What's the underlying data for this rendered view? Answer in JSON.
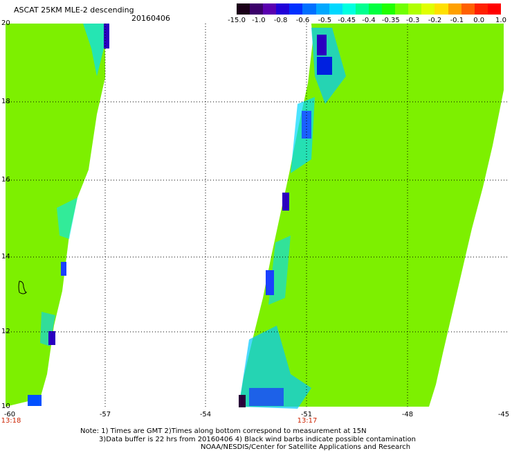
{
  "header": {
    "title": "ASCAT 25KM MLE-2 descending",
    "date": "20160406"
  },
  "colorbar": {
    "labels": [
      "-15.0",
      "-1.0",
      "-0.8",
      "-0.6",
      "-0.5",
      "-0.45",
      "-0.4",
      "-0.35",
      "-0.3",
      "-0.2",
      "-0.1",
      "0.0",
      "1.0"
    ],
    "colors": [
      "#1a0018",
      "#3a006a",
      "#5a00b0",
      "#2000d8",
      "#0030ff",
      "#0070ff",
      "#00a8ff",
      "#00d8ff",
      "#00ffe0",
      "#00ff90",
      "#00ff40",
      "#20ff00",
      "#70ff00",
      "#b0ff00",
      "#e0ff00",
      "#ffe000",
      "#ffa000",
      "#ff6000",
      "#ff2000",
      "#ff0000"
    ]
  },
  "axes": {
    "lat_labels": [
      "20",
      "18",
      "16",
      "14",
      "12",
      "10"
    ],
    "lon_labels": [
      "-60",
      "-57",
      "-54",
      "-51",
      "-48",
      "-45"
    ],
    "time_labels": [
      "13:18",
      "13:17"
    ]
  },
  "notes": {
    "line1": "Note: 1) Times are GMT 2)Times along bottom correspond to measurement at 15N",
    "line2": "3)Data buffer is 22 hrs from 20160406 4) Black wind barbs indicate possible contamination",
    "line3": "NOAA/NESDIS/Center for Satellite Applications and Research"
  },
  "swaths": {
    "base_color": "#7df000"
  }
}
